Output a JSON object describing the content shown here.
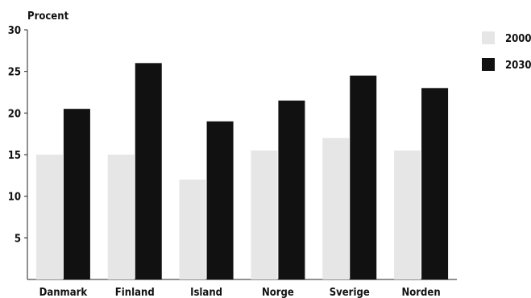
{
  "chart_data": {
    "type": "bar",
    "title": "",
    "ylabel": "Procent",
    "xlabel": "",
    "categories": [
      "Danmark",
      "Finland",
      "Island",
      "Norge",
      "Sverige",
      "Norden"
    ],
    "series": [
      {
        "name": "2000",
        "color": "#e6e6e6",
        "values": [
          15,
          15,
          12,
          15.5,
          17,
          15.5
        ]
      },
      {
        "name": "2030",
        "color": "#111111",
        "values": [
          20.5,
          26,
          19,
          21.5,
          24.5,
          23
        ]
      }
    ],
    "ylim": [
      0,
      30
    ],
    "yticks": [
      5,
      10,
      15,
      20,
      25,
      30
    ],
    "grid": false,
    "legend": "top-right"
  }
}
